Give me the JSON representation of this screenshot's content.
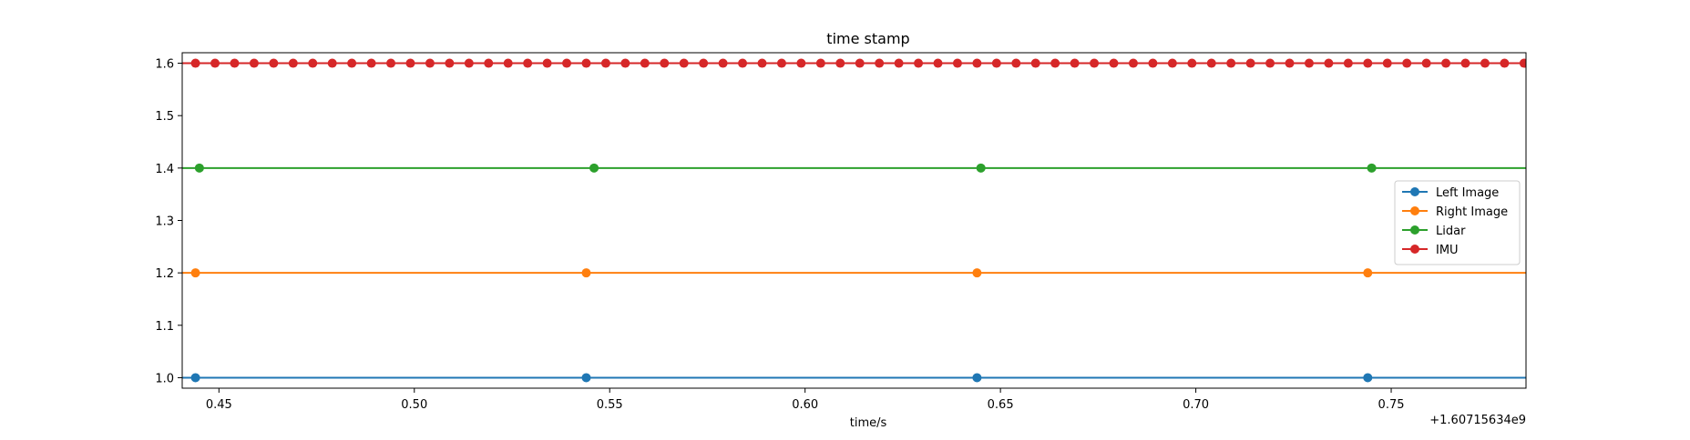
{
  "chart_data": {
    "type": "line",
    "title": "time stamp",
    "xlabel": "time/s",
    "ylabel": "",
    "x_offset_label": "+1.60715634e9",
    "xlim": [
      0.4406,
      0.7845
    ],
    "ylim": [
      0.98,
      1.62
    ],
    "x_ticks": [
      0.45,
      0.5,
      0.55,
      0.6,
      0.65,
      0.7,
      0.75
    ],
    "x_tick_labels": [
      "0.45",
      "0.50",
      "0.55",
      "0.60",
      "0.65",
      "0.70",
      "0.75"
    ],
    "y_ticks": [
      1.0,
      1.1,
      1.2,
      1.3,
      1.4,
      1.5,
      1.6
    ],
    "y_tick_labels": [
      "1.0",
      "1.1",
      "1.2",
      "1.3",
      "1.4",
      "1.5",
      "1.6"
    ],
    "grid": false,
    "legend_position": "right",
    "series": [
      {
        "name": "Left Image",
        "color": "#1f77b4",
        "y": 1.0,
        "x": [
          0.444,
          0.544,
          0.644,
          0.744
        ]
      },
      {
        "name": "Right Image",
        "color": "#ff7f0e",
        "y": 1.2,
        "x": [
          0.444,
          0.544,
          0.644,
          0.744
        ]
      },
      {
        "name": "Lidar",
        "color": "#2ca02c",
        "y": 1.4,
        "x": [
          0.445,
          0.546,
          0.645,
          0.745
        ]
      },
      {
        "name": "IMU",
        "color": "#d62728",
        "y": 1.6,
        "x_start": 0.444,
        "x_step": 0.005,
        "count": 69
      }
    ]
  }
}
